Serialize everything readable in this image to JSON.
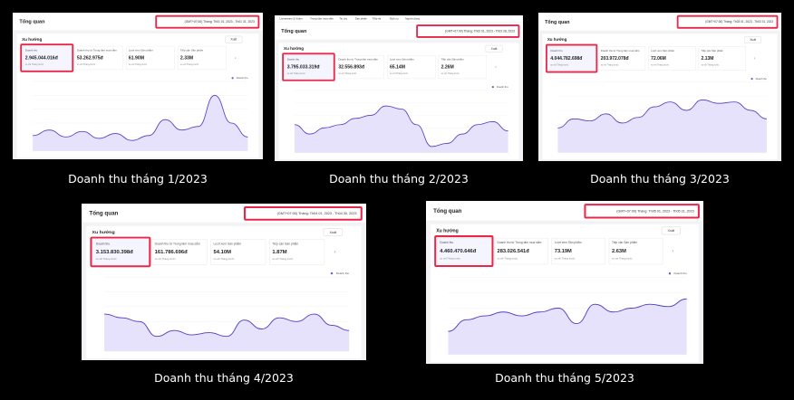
{
  "panels": [
    {
      "title": "Tổng quan",
      "date_range": "(GMT+07:00)  Tháng: Th01 01, 2023 - Th01 31, 2023",
      "section": "Xu hướng",
      "export": "Xuất",
      "metrics": [
        {
          "label": "Doanh thu",
          "value": "2.945.044.016đ",
          "compare": "so với Tháng trước"
        },
        {
          "label": "Doanh thu từ Trung tâm mua sắm",
          "value": "53.262.975đ",
          "compare": "so với Tháng trước"
        },
        {
          "label": "Lượt xem Sản phẩm",
          "value": "61.90M",
          "compare": "so với Tháng trước"
        },
        {
          "label": "Tiếp cận Sản phẩm",
          "value": "2.33M",
          "compare": "so với Tháng trước"
        }
      ],
      "legend": "Doanh thu",
      "trend": [
        22,
        30,
        20,
        28,
        18,
        25,
        15,
        22,
        45,
        30,
        35,
        80,
        40,
        20
      ],
      "caption": "Doanh thu tháng 1/2023"
    },
    {
      "nav": [
        "Livestream & Video",
        "Trung tâm mua sắm",
        "Tin tức",
        "Sản phẩm",
        "Tiếp thị",
        "Dịch vụ",
        "Người dùng"
      ],
      "title": "Tổng quan",
      "date_range": "(GMT+07:00)  Tháng: Th02 01, 2023 - Th02 28, 2023",
      "section": "Xu hướng",
      "export": "Xuất",
      "metrics": [
        {
          "label": "Doanh thu",
          "value": "3.795.033.319đ",
          "compare": "so với Tháng trước"
        },
        {
          "label": "Doanh thu từ Trung tâm mua sắm",
          "value": "32.556.893đ",
          "compare": "so với Tháng trước"
        },
        {
          "label": "Lượt xem Sản phẩm",
          "value": "65.14M",
          "compare": "so với Tháng trước"
        },
        {
          "label": "Tiếp cận Sản phẩm",
          "value": "2.26M",
          "compare": "so với Tháng trước"
        }
      ],
      "legend": "Doanh thu",
      "trend": [
        45,
        30,
        40,
        45,
        55,
        60,
        75,
        70,
        45,
        10,
        15,
        30,
        45,
        50,
        35
      ],
      "caption": "Doanh thu tháng 2/2023"
    },
    {
      "title": "Tổng quan",
      "date_range": "(GMT+07:00)  Tháng: Th03 01, 2023 - Th03 31, 2023",
      "section": "Xu hướng",
      "export": "Xuất",
      "metrics": [
        {
          "label": "Doanh thu",
          "value": "4.044.782.698đ",
          "compare": "so với Tháng trước"
        },
        {
          "label": "Doanh thu từ Trung tâm mua sắm",
          "value": "203.972.078đ",
          "compare": "so với Tháng trước"
        },
        {
          "label": "Lượt xem Sản phẩm",
          "value": "72.06M",
          "compare": "so với Tháng trước"
        },
        {
          "label": "Tiếp cận Sản phẩm",
          "value": "2.13M",
          "compare": "so với Tháng trước"
        }
      ],
      "legend": "Doanh thu",
      "trend": [
        35,
        48,
        45,
        55,
        42,
        50,
        65,
        72,
        60,
        75,
        70,
        72,
        60,
        48
      ],
      "caption": "Doanh thu tháng 3/2023"
    },
    {
      "title": "Tổng quan",
      "date_range": "(GMT+07:00)  Tháng: Th04 01, 2023 - Th04 30, 2023",
      "section": "Xu hướng",
      "export": "Xuất",
      "metrics": [
        {
          "label": "Doanh thu",
          "value": "3.153.830.398đ",
          "compare": "so với Tháng trước"
        },
        {
          "label": "Doanh thu từ Trung tâm mua sắm",
          "value": "161.786.696đ",
          "compare": "so với Tháng trước"
        },
        {
          "label": "Lượt xem Sản phẩm",
          "value": "54.10M",
          "compare": "so với Tháng trước"
        },
        {
          "label": "Tiếp cận Sản phẩm",
          "value": "1.87M",
          "compare": "so với Tháng trước"
        }
      ],
      "legend": "Doanh thu",
      "trend": [
        50,
        45,
        40,
        20,
        28,
        22,
        25,
        20,
        42,
        30,
        45,
        40,
        50,
        35,
        28
      ],
      "caption": "Doanh thu tháng 4/2023"
    },
    {
      "title": "Tổng quan",
      "date_range": "(GMT+07:00)  Tháng: Th05 01, 2023 - Th05 31, 2023",
      "section": "Xu hướng",
      "export": "Xuất",
      "metrics": [
        {
          "label": "Doanh thu",
          "value": "4.460.470.646đ",
          "compare": "so với Tháng trước"
        },
        {
          "label": "Doanh thu từ Trung tâm mua sắm",
          "value": "283.026.541đ",
          "compare": "so với Tháng trước"
        },
        {
          "label": "Lượt xem Sản phẩm",
          "value": "73.19M",
          "compare": "so với Tháng trước"
        },
        {
          "label": "Tiếp cận Sản phẩm",
          "value": "2.63M",
          "compare": "so với Tháng trước"
        }
      ],
      "legend": "Doanh thu",
      "trend": [
        30,
        45,
        50,
        55,
        50,
        55,
        60,
        40,
        65,
        55,
        60,
        65,
        62,
        72
      ],
      "caption": "Doanh thu tháng 5/2023"
    }
  ]
}
